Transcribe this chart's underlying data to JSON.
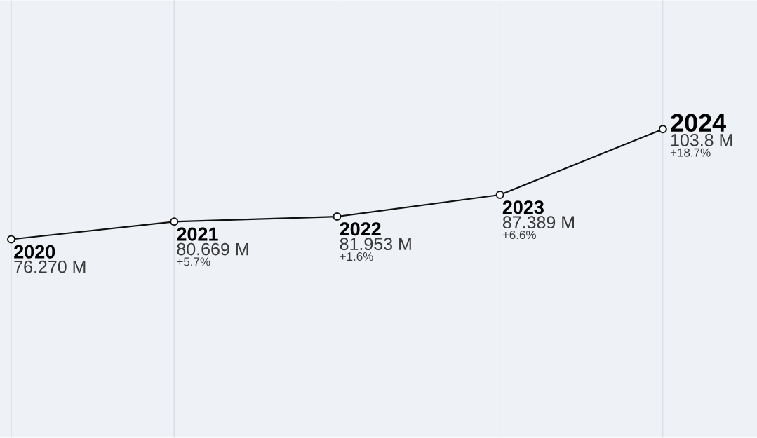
{
  "chart_data": {
    "type": "line",
    "categories": [
      "2020",
      "2021",
      "2022",
      "2023",
      "2024"
    ],
    "series": [
      {
        "color": "#111111",
        "values": [
          76.27,
          80.669,
          81.953,
          87.389,
          103.8
        ],
        "value_labels": [
          "76.270 M",
          "80.669 M",
          "81.953 M",
          "87.389 M",
          "103.8 M"
        ]
      }
    ],
    "annotations": [
      "+5.7%",
      "+1.6%",
      "+6.6%",
      "+18.7%"
    ],
    "grid": "x",
    "marker": "circle",
    "line_style": "solid"
  }
}
